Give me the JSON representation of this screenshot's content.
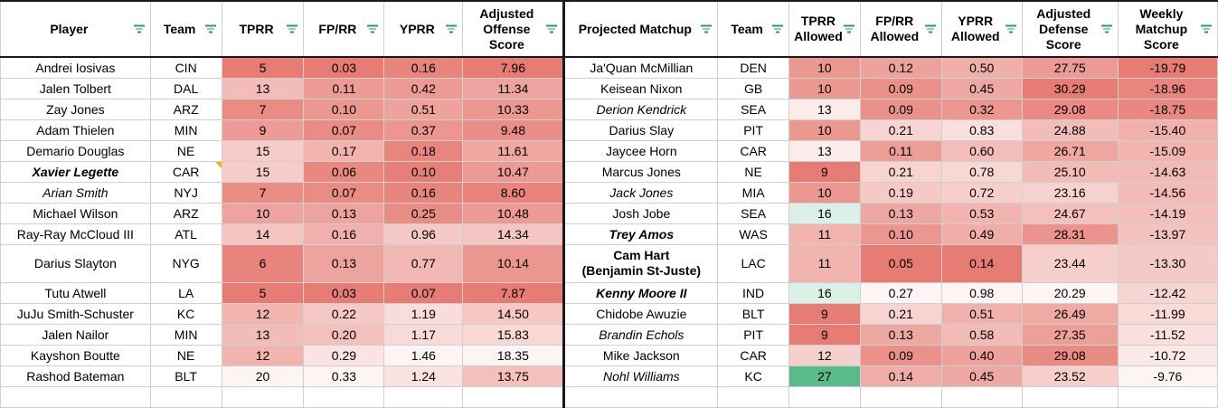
{
  "headers": {
    "player": "Player",
    "team": "Team",
    "tprr": "TPRR",
    "fprr": "FP/RR",
    "yprr": "YPRR",
    "adj_off": "Adjusted Offense Score",
    "matchup": "Projected Matchup",
    "team2": "Team",
    "tprr_allowed": "TPRR Allowed",
    "fprr_allowed": "FP/RR Allowed",
    "yprr_allowed": "YPRR Allowed",
    "adj_def": "Adjusted Defense Score",
    "weekly": "Weekly Matchup Score"
  },
  "rows": [
    {
      "player": "Andrei Iosivas",
      "team": "CIN",
      "tprr": "5",
      "fprr": "0.03",
      "yprr": "0.16",
      "adj_off": "7.96",
      "matchup": "Ja'Quan McMillian",
      "team2": "DEN",
      "tprr_a": "10",
      "fprr_a": "0.12",
      "yprr_a": "0.50",
      "adj_def": "27.75",
      "weekly": "-19.79"
    },
    {
      "player": "Jalen Tolbert",
      "team": "DAL",
      "tprr": "13",
      "fprr": "0.11",
      "yprr": "0.42",
      "adj_off": "11.34",
      "matchup": "Keisean Nixon",
      "team2": "GB",
      "tprr_a": "10",
      "fprr_a": "0.09",
      "yprr_a": "0.45",
      "adj_def": "30.29",
      "weekly": "-18.96"
    },
    {
      "player": "Zay Jones",
      "team": "ARZ",
      "tprr": "7",
      "fprr": "0.10",
      "yprr": "0.51",
      "adj_off": "10.33",
      "matchup": "Derion Kendrick",
      "team2": "SEA",
      "tprr_a": "13",
      "fprr_a": "0.09",
      "yprr_a": "0.32",
      "adj_def": "29.08",
      "weekly": "-18.75"
    },
    {
      "player": "Adam Thielen",
      "team": "MIN",
      "tprr": "9",
      "fprr": "0.07",
      "yprr": "0.37",
      "adj_off": "9.48",
      "matchup": "Darius Slay",
      "team2": "PIT",
      "tprr_a": "10",
      "fprr_a": "0.21",
      "yprr_a": "0.83",
      "adj_def": "24.88",
      "weekly": "-15.40"
    },
    {
      "player": "Demario Douglas",
      "team": "NE",
      "tprr": "15",
      "fprr": "0.17",
      "yprr": "0.18",
      "adj_off": "11.61",
      "matchup": "Jaycee Horn",
      "team2": "CAR",
      "tprr_a": "13",
      "fprr_a": "0.11",
      "yprr_a": "0.60",
      "adj_def": "26.71",
      "weekly": "-15.09"
    },
    {
      "player": "Xavier Legette",
      "team": "CAR",
      "tprr": "15",
      "fprr": "0.06",
      "yprr": "0.10",
      "adj_off": "10.47",
      "matchup": "Marcus Jones",
      "team2": "NE",
      "tprr_a": "9",
      "fprr_a": "0.21",
      "yprr_a": "0.78",
      "adj_def": "25.10",
      "weekly": "-14.63"
    },
    {
      "player": "Arian Smith",
      "team": "NYJ",
      "tprr": "7",
      "fprr": "0.07",
      "yprr": "0.16",
      "adj_off": "8.60",
      "matchup": "Jack Jones",
      "team2": "MIA",
      "tprr_a": "10",
      "fprr_a": "0.19",
      "yprr_a": "0.72",
      "adj_def": "23.16",
      "weekly": "-14.56"
    },
    {
      "player": "Michael Wilson",
      "team": "ARZ",
      "tprr": "10",
      "fprr": "0.13",
      "yprr": "0.25",
      "adj_off": "10.48",
      "matchup": "Josh Jobe",
      "team2": "SEA",
      "tprr_a": "16",
      "fprr_a": "0.13",
      "yprr_a": "0.53",
      "adj_def": "24.67",
      "weekly": "-14.19"
    },
    {
      "player": "Ray-Ray McCloud III",
      "team": "ATL",
      "tprr": "14",
      "fprr": "0.16",
      "yprr": "0.96",
      "adj_off": "14.34",
      "matchup": "Trey Amos",
      "team2": "WAS",
      "tprr_a": "11",
      "fprr_a": "0.10",
      "yprr_a": "0.49",
      "adj_def": "28.31",
      "weekly": "-13.97"
    },
    {
      "player": "Darius Slayton",
      "team": "NYG",
      "tprr": "6",
      "fprr": "0.13",
      "yprr": "0.77",
      "adj_off": "10.14",
      "matchup": "Cam Hart",
      "matchup_line2": "(Benjamin St-Juste)",
      "team2": "LAC",
      "tprr_a": "11",
      "fprr_a": "0.05",
      "yprr_a": "0.14",
      "adj_def": "23.44",
      "weekly": "-13.30"
    },
    {
      "player": "Tutu Atwell",
      "team": "LA",
      "tprr": "5",
      "fprr": "0.03",
      "yprr": "0.07",
      "adj_off": "7.87",
      "matchup": "Kenny Moore II",
      "team2": "IND",
      "tprr_a": "16",
      "fprr_a": "0.27",
      "yprr_a": "0.98",
      "adj_def": "20.29",
      "weekly": "-12.42"
    },
    {
      "player": "JuJu Smith-Schuster",
      "team": "KC",
      "tprr": "12",
      "fprr": "0.22",
      "yprr": "1.19",
      "adj_off": "14.50",
      "matchup": "Chidobe Awuzie",
      "team2": "BLT",
      "tprr_a": "9",
      "fprr_a": "0.21",
      "yprr_a": "0.51",
      "adj_def": "26.49",
      "weekly": "-11.99"
    },
    {
      "player": "Jalen Nailor",
      "team": "MIN",
      "tprr": "13",
      "fprr": "0.20",
      "yprr": "1.17",
      "adj_off": "15.83",
      "matchup": "Brandin Echols",
      "team2": "PIT",
      "tprr_a": "9",
      "fprr_a": "0.13",
      "yprr_a": "0.58",
      "adj_def": "27.35",
      "weekly": "-11.52"
    },
    {
      "player": "Kayshon Boutte",
      "team": "NE",
      "tprr": "12",
      "fprr": "0.29",
      "yprr": "1.46",
      "adj_off": "18.35",
      "matchup": "Mike Jackson",
      "team2": "CAR",
      "tprr_a": "12",
      "fprr_a": "0.09",
      "yprr_a": "0.40",
      "adj_def": "29.08",
      "weekly": "-10.72"
    },
    {
      "player": "Rashod Bateman",
      "team": "BLT",
      "tprr": "20",
      "fprr": "0.33",
      "yprr": "1.24",
      "adj_off": "13.75",
      "matchup": "Nohl Williams",
      "team2": "KC",
      "tprr_a": "27",
      "fprr_a": "0.14",
      "yprr_a": "0.45",
      "adj_def": "23.52",
      "weekly": "-9.76"
    }
  ],
  "styles": {
    "player_bold_italic": [
      5
    ],
    "player_italic": [
      6
    ],
    "player_note_marker": [
      5
    ],
    "matchup_italic": [
      2,
      6,
      12,
      14
    ],
    "matchup_bold_italic": [
      8,
      10
    ],
    "matchup_bold": [
      9
    ]
  },
  "colors": {
    "heat_high": "#e67c73",
    "heat_low": "#ffffff",
    "heat_green": "#57bb8a",
    "filter_icon": "#22a05a",
    "note_marker": "#f4b400"
  }
}
